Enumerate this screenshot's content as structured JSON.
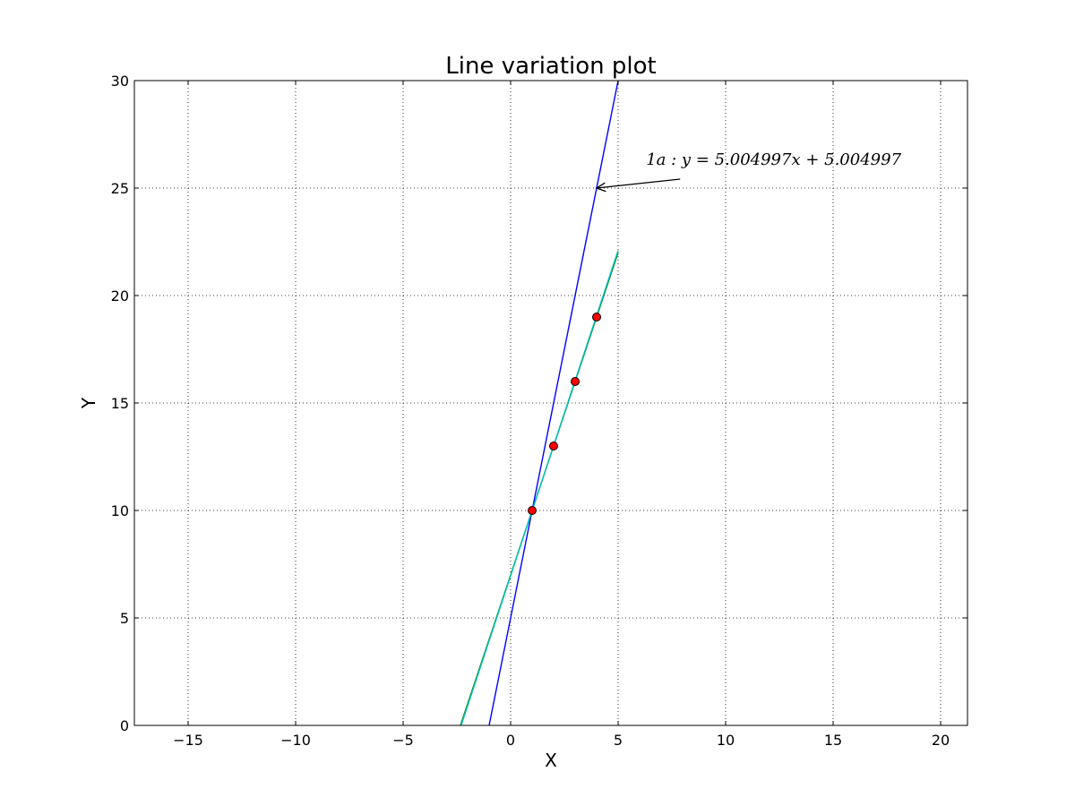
{
  "chart_data": {
    "type": "line",
    "title": "Line variation plot",
    "xlabel": "X",
    "ylabel": "Y",
    "xlim": [
      -17.5,
      21.25
    ],
    "ylim": [
      0,
      30
    ],
    "xticks": [
      -15,
      -10,
      -5,
      0,
      5,
      10,
      15,
      20
    ],
    "yticks": [
      0,
      5,
      10,
      15,
      20,
      25,
      30
    ],
    "xtick_labels": [
      "−15",
      "−10",
      "−5",
      "0",
      "5",
      "10",
      "15",
      "20"
    ],
    "ytick_labels": [
      "0",
      "5",
      "10",
      "15",
      "20",
      "25",
      "30"
    ],
    "grid": true,
    "series": [
      {
        "kind": "line",
        "color": "#0000ff",
        "x": [
          -1,
          5
        ],
        "y": [
          0,
          30
        ]
      },
      {
        "kind": "line",
        "color": "#008000",
        "x": [
          -2.333,
          5
        ],
        "y": [
          0,
          22
        ]
      },
      {
        "kind": "line",
        "color": "#00bfbf",
        "x": [
          -2.3,
          5
        ],
        "y": [
          0,
          22.1
        ]
      },
      {
        "kind": "scatter",
        "color": "#ff0000",
        "x": [
          1,
          2,
          3,
          4
        ],
        "y": [
          10,
          13,
          16,
          19
        ]
      }
    ],
    "annotations": [
      {
        "text": "1a : y = 5.004997x + 5.004997",
        "xy": [
          4,
          25
        ],
        "xytext": [
          6.3,
          26
        ]
      }
    ]
  }
}
